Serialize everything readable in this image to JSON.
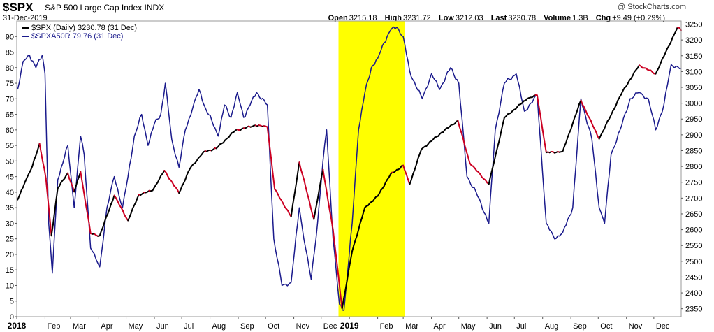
{
  "header": {
    "symbol": "$SPX",
    "description": "S&P 500 Large Cap Index INDX",
    "date": "31-Dec-2019",
    "watermark": "@ StockCharts.com",
    "open_label": "Open",
    "open": "3215.18",
    "high_label": "High",
    "high": "3231.72",
    "low_label": "Low",
    "low": "3212.03",
    "last_label": "Last",
    "last": "3230.78",
    "volume_label": "Volume",
    "volume": "1.3B",
    "chg_label": "Chg",
    "chg": "+9.49 (+0.29%)"
  },
  "legend": {
    "spx": "$SPX (Daily) 3230.78 (31 Dec)",
    "spxa50r": "$SPXA50R 79.76 (31 Dec)"
  },
  "colors": {
    "spx_up": "#000000",
    "spx_down": "#cc0022",
    "breadth": "#1a1a8c",
    "highlight": "#ffff00"
  },
  "chart_data": {
    "type": "line",
    "x_months": [
      "2018",
      "Feb",
      "Mar",
      "Apr",
      "May",
      "Jun",
      "Jul",
      "Aug",
      "Sep",
      "Oct",
      "Nov",
      "Dec",
      "2019",
      "Feb",
      "Mar",
      "Apr",
      "May",
      "Jun",
      "Jul",
      "Aug",
      "Sep",
      "Oct",
      "Nov",
      "Dec"
    ],
    "left_axis": {
      "ylim": [
        0,
        95
      ],
      "ticks": [
        0,
        5,
        10,
        15,
        20,
        25,
        30,
        35,
        40,
        45,
        50,
        55,
        60,
        65,
        70,
        75,
        80,
        85,
        90
      ]
    },
    "right_axis": {
      "ylim": [
        2325,
        3260
      ],
      "ticks": [
        2350,
        2400,
        2450,
        2500,
        2550,
        2600,
        2650,
        2700,
        2750,
        2800,
        2850,
        2900,
        2950,
        3000,
        3050,
        3100,
        3150,
        3200,
        3250
      ]
    },
    "highlight_range": [
      "2018-12-20",
      "2019-03-03"
    ],
    "series": [
      {
        "name": "$SPX (Daily)",
        "axis": "right",
        "points": [
          [
            "2018-01-02",
            2695
          ],
          [
            "2018-01-10",
            2750
          ],
          [
            "2018-01-18",
            2800
          ],
          [
            "2018-01-26",
            2872
          ],
          [
            "2018-02-02",
            2762
          ],
          [
            "2018-02-08",
            2581
          ],
          [
            "2018-02-15",
            2731
          ],
          [
            "2018-02-26",
            2779
          ],
          [
            "2018-03-05",
            2720
          ],
          [
            "2018-03-12",
            2783
          ],
          [
            "2018-03-23",
            2588
          ],
          [
            "2018-04-02",
            2581
          ],
          [
            "2018-04-18",
            2708
          ],
          [
            "2018-05-03",
            2629
          ],
          [
            "2018-05-15",
            2711
          ],
          [
            "2018-05-30",
            2724
          ],
          [
            "2018-06-12",
            2787
          ],
          [
            "2018-06-28",
            2716
          ],
          [
            "2018-07-10",
            2793
          ],
          [
            "2018-07-25",
            2846
          ],
          [
            "2018-08-08",
            2857
          ],
          [
            "2018-08-29",
            2914
          ],
          [
            "2018-09-20",
            2930
          ],
          [
            "2018-10-03",
            2925
          ],
          [
            "2018-10-11",
            2728
          ],
          [
            "2018-10-29",
            2641
          ],
          [
            "2018-11-07",
            2813
          ],
          [
            "2018-11-23",
            2633
          ],
          [
            "2018-12-03",
            2790
          ],
          [
            "2018-12-14",
            2599
          ],
          [
            "2018-12-24",
            2351
          ],
          [
            "2019-01-04",
            2532
          ],
          [
            "2019-01-18",
            2670
          ],
          [
            "2019-02-01",
            2706
          ],
          [
            "2019-02-15",
            2775
          ],
          [
            "2019-03-01",
            2803
          ],
          [
            "2019-03-08",
            2743
          ],
          [
            "2019-03-21",
            2854
          ],
          [
            "2019-04-12",
            2907
          ],
          [
            "2019-04-30",
            2945
          ],
          [
            "2019-05-13",
            2811
          ],
          [
            "2019-06-03",
            2744
          ],
          [
            "2019-06-20",
            2954
          ],
          [
            "2019-07-15",
            3014
          ],
          [
            "2019-07-26",
            3025
          ],
          [
            "2019-08-05",
            2844
          ],
          [
            "2019-08-23",
            2847
          ],
          [
            "2019-09-12",
            3009
          ],
          [
            "2019-10-02",
            2887
          ],
          [
            "2019-10-28",
            3039
          ],
          [
            "2019-11-15",
            3120
          ],
          [
            "2019-12-03",
            3093
          ],
          [
            "2019-12-27",
            3240
          ],
          [
            "2019-12-31",
            3230.78
          ]
        ]
      },
      {
        "name": "$SPXA50R",
        "axis": "left",
        "points": [
          [
            "2018-01-02",
            73
          ],
          [
            "2018-01-08",
            82
          ],
          [
            "2018-01-15",
            84
          ],
          [
            "2018-01-22",
            80
          ],
          [
            "2018-01-29",
            84
          ],
          [
            "2018-02-01",
            78
          ],
          [
            "2018-02-05",
            30
          ],
          [
            "2018-02-09",
            14
          ],
          [
            "2018-02-15",
            44
          ],
          [
            "2018-02-26",
            55
          ],
          [
            "2018-03-05",
            35
          ],
          [
            "2018-03-12",
            58
          ],
          [
            "2018-03-16",
            52
          ],
          [
            "2018-03-23",
            22
          ],
          [
            "2018-04-02",
            16
          ],
          [
            "2018-04-10",
            35
          ],
          [
            "2018-04-18",
            45
          ],
          [
            "2018-04-27",
            35
          ],
          [
            "2018-05-03",
            45
          ],
          [
            "2018-05-10",
            58
          ],
          [
            "2018-05-18",
            65
          ],
          [
            "2018-05-25",
            55
          ],
          [
            "2018-06-01",
            62
          ],
          [
            "2018-06-08",
            65
          ],
          [
            "2018-06-13",
            75
          ],
          [
            "2018-06-20",
            57
          ],
          [
            "2018-06-28",
            48
          ],
          [
            "2018-07-05",
            60
          ],
          [
            "2018-07-13",
            67
          ],
          [
            "2018-07-20",
            73
          ],
          [
            "2018-07-27",
            67
          ],
          [
            "2018-08-03",
            63
          ],
          [
            "2018-08-10",
            58
          ],
          [
            "2018-08-17",
            68
          ],
          [
            "2018-08-24",
            64
          ],
          [
            "2018-08-31",
            72
          ],
          [
            "2018-09-07",
            64
          ],
          [
            "2018-09-14",
            68
          ],
          [
            "2018-09-21",
            72
          ],
          [
            "2018-10-03",
            68
          ],
          [
            "2018-10-10",
            25
          ],
          [
            "2018-10-19",
            10
          ],
          [
            "2018-10-29",
            11
          ],
          [
            "2018-11-07",
            35
          ],
          [
            "2018-11-12",
            25
          ],
          [
            "2018-11-20",
            12
          ],
          [
            "2018-11-27",
            30
          ],
          [
            "2018-12-03",
            50
          ],
          [
            "2018-12-07",
            60
          ],
          [
            "2018-12-14",
            25
          ],
          [
            "2018-12-21",
            4
          ],
          [
            "2018-12-26",
            2
          ],
          [
            "2019-01-04",
            30
          ],
          [
            "2019-01-11",
            60
          ],
          [
            "2019-01-18",
            72
          ],
          [
            "2019-01-25",
            80
          ],
          [
            "2019-02-01",
            83
          ],
          [
            "2019-02-08",
            88
          ],
          [
            "2019-02-15",
            92
          ],
          [
            "2019-02-22",
            93
          ],
          [
            "2019-03-01",
            90
          ],
          [
            "2019-03-08",
            79
          ],
          [
            "2019-03-15",
            74
          ],
          [
            "2019-03-22",
            70
          ],
          [
            "2019-04-01",
            78
          ],
          [
            "2019-04-10",
            73
          ],
          [
            "2019-04-22",
            80
          ],
          [
            "2019-05-01",
            75
          ],
          [
            "2019-05-10",
            45
          ],
          [
            "2019-05-20",
            40
          ],
          [
            "2019-06-03",
            30
          ],
          [
            "2019-06-10",
            60
          ],
          [
            "2019-06-20",
            75
          ],
          [
            "2019-07-03",
            78
          ],
          [
            "2019-07-12",
            66
          ],
          [
            "2019-07-26",
            71
          ],
          [
            "2019-08-05",
            30
          ],
          [
            "2019-08-14",
            25
          ],
          [
            "2019-08-23",
            27
          ],
          [
            "2019-09-03",
            35
          ],
          [
            "2019-09-12",
            70
          ],
          [
            "2019-09-24",
            57
          ],
          [
            "2019-10-02",
            35
          ],
          [
            "2019-10-08",
            30
          ],
          [
            "2019-10-15",
            52
          ],
          [
            "2019-10-25",
            60
          ],
          [
            "2019-11-05",
            70
          ],
          [
            "2019-11-15",
            72
          ],
          [
            "2019-11-25",
            70
          ],
          [
            "2019-12-03",
            60
          ],
          [
            "2019-12-12",
            68
          ],
          [
            "2019-12-20",
            81
          ],
          [
            "2019-12-31",
            79.76
          ]
        ]
      }
    ]
  }
}
